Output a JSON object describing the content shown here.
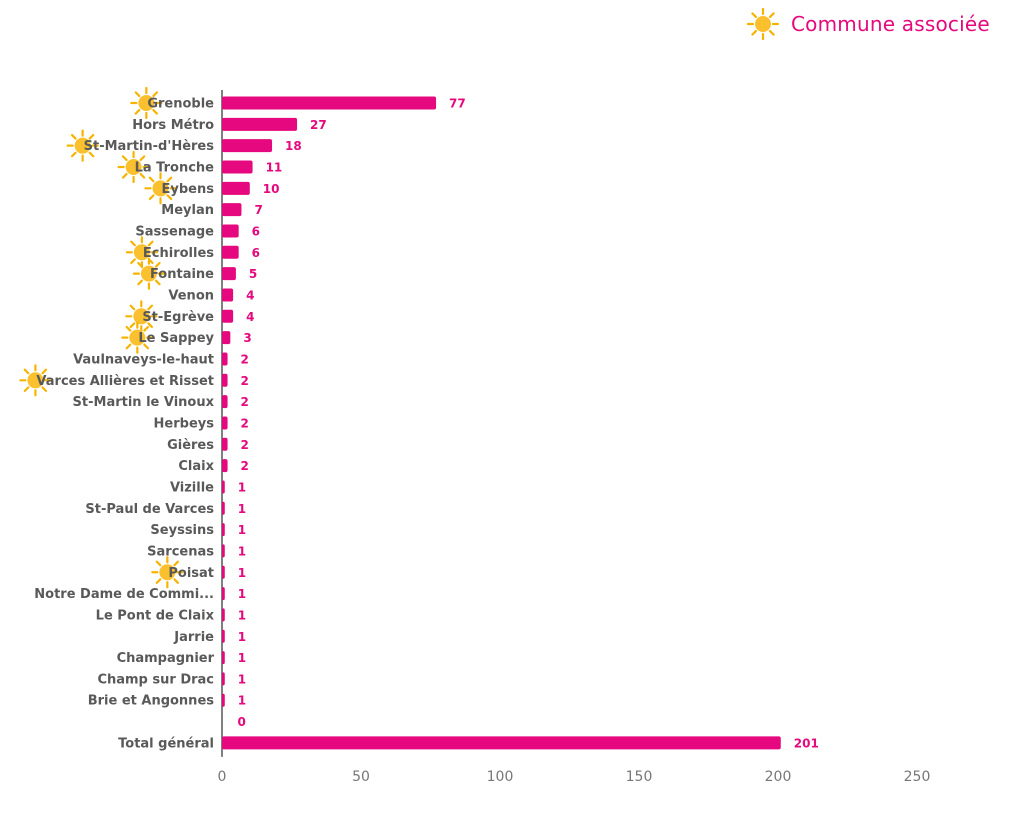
{
  "legend": {
    "label": "Commune associée",
    "icon": "sun-icon"
  },
  "colors": {
    "bar": "#e5087e",
    "label": "#e5087e",
    "axis": "#555555",
    "sun": "#fbc02d",
    "sun_ray": "#f6b400"
  },
  "chart_data": {
    "type": "bar",
    "orientation": "horizontal",
    "title": "",
    "xlabel": "",
    "ylabel": "",
    "xlim": [
      0,
      250
    ],
    "xticks": [
      0,
      50,
      100,
      150,
      200,
      250
    ],
    "grid": false,
    "legend_position": "top-right",
    "categories": [
      "Grenoble",
      "Hors Métro",
      "St-Martin-d'Hères",
      "La Tronche",
      "Eybens",
      "Meylan",
      "Sassenage",
      "Echirolles",
      "Fontaine",
      "Venon",
      "St-Egrève",
      "Le Sappey",
      "Vaulnaveys-le-haut",
      "Varces Allières et Risset",
      "St-Martin le Vinoux",
      "Herbeys",
      "Gières",
      "Claix",
      "Vizille",
      "St-Paul de Varces",
      "Seyssins",
      "Sarcenas",
      "Poisat",
      "Notre Dame de Commi...",
      "Le Pont de Claix",
      "Jarrie",
      "Champagnier",
      "Champ sur Drac",
      "Brie et Angonnes",
      "",
      "Total général"
    ],
    "values": [
      77,
      27,
      18,
      11,
      10,
      7,
      6,
      6,
      5,
      4,
      4,
      3,
      2,
      2,
      2,
      2,
      2,
      2,
      1,
      1,
      1,
      1,
      1,
      1,
      1,
      1,
      1,
      1,
      1,
      0,
      201
    ],
    "commune_associee": [
      true,
      false,
      true,
      true,
      true,
      false,
      false,
      true,
      true,
      false,
      true,
      true,
      false,
      true,
      false,
      false,
      false,
      false,
      false,
      false,
      false,
      false,
      true,
      false,
      false,
      false,
      false,
      false,
      false,
      false,
      false
    ]
  }
}
